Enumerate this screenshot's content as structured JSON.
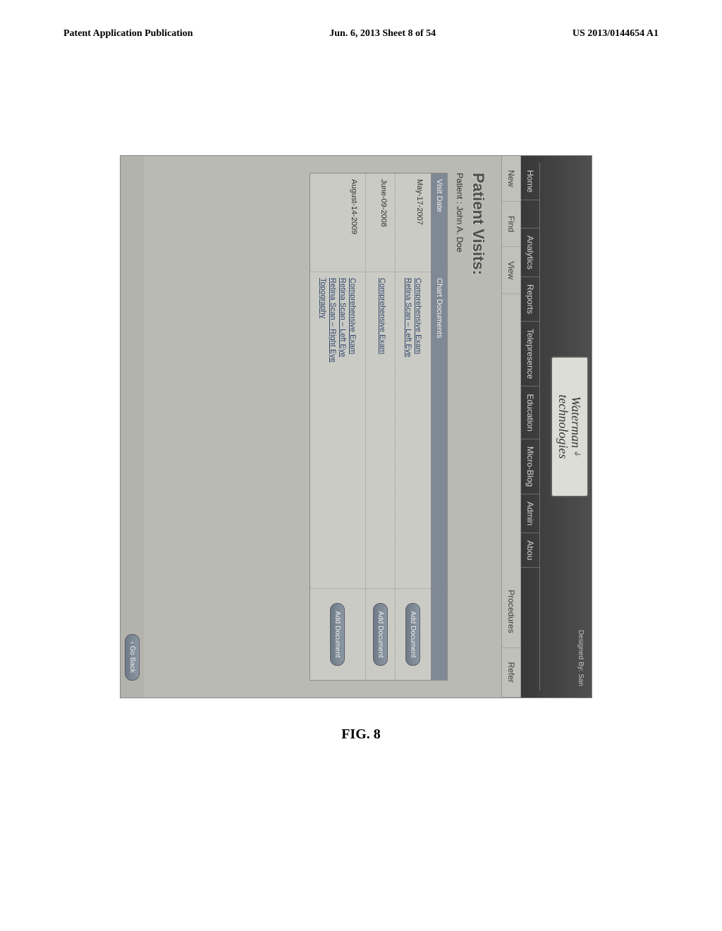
{
  "header": {
    "left": "Patent Application Publication",
    "center": "Jun. 6, 2013  Sheet 8 of 54",
    "right": "US 2013/0144654 A1"
  },
  "logo": {
    "line1": "Waterman",
    "line2": "technologies"
  },
  "designed_by": "Designed By: San",
  "nav1": {
    "home": "Home",
    "blank": " ",
    "analytics": "Analytics",
    "reports": "Reports",
    "telepresence": "Telepresence",
    "education": "Education",
    "microblog": "Micro-Blog",
    "admin": "Admin",
    "about": "Abou"
  },
  "nav2": {
    "new": "New",
    "find": "Find",
    "view": "View",
    "procedures": "Procedures",
    "refer": "Refer"
  },
  "content": {
    "title": "Patient Visits:",
    "patient_label": "Patient : ",
    "patient_name": "John A. Doe"
  },
  "table": {
    "col_date": "Visit Date",
    "col_docs": "Chart Documents",
    "col_actions": " ",
    "add_doc_label": "Add Document",
    "rows": [
      {
        "date": "May-17-2007",
        "docs": [
          "Comprehensive Exam",
          "Retina Scan – Left Eye"
        ]
      },
      {
        "date": "June-09-2008",
        "docs": [
          "Comprehensive Exam"
        ]
      },
      {
        "date": "August-14-2009",
        "docs": [
          "Comprehensive Exam",
          "Retina Scan – Left Eye",
          "Retina Scan – Right Eye",
          "Topography"
        ]
      }
    ]
  },
  "back_label": "‹ Go Back",
  "figure_label": "FIG. 8"
}
